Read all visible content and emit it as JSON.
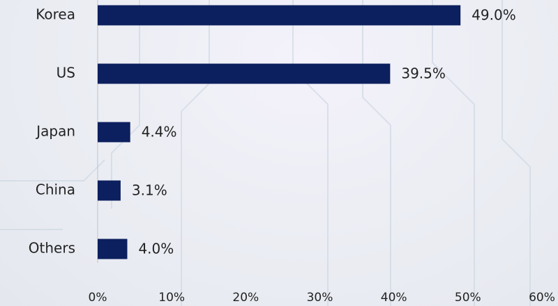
{
  "chart_data": {
    "type": "bar",
    "orientation": "horizontal",
    "categories": [
      "Korea",
      "US",
      "Japan",
      "China",
      "Others"
    ],
    "values": [
      49.0,
      39.5,
      4.4,
      3.1,
      4.0
    ],
    "value_labels": [
      "49.0%",
      "39.5%",
      "4.4%",
      "3.1%",
      "4.0%"
    ],
    "color": "#0c1f5e",
    "xlim": [
      0,
      60
    ],
    "xticks": [
      {
        "value": 0,
        "label": "0%"
      },
      {
        "value": 10,
        "label": "10%"
      },
      {
        "value": 20,
        "label": "20%"
      },
      {
        "value": 30,
        "label": "30%"
      },
      {
        "value": 40,
        "label": "40%"
      },
      {
        "value": 50,
        "label": "50%"
      },
      {
        "value": 60,
        "label": "60%"
      }
    ],
    "grid": false
  }
}
